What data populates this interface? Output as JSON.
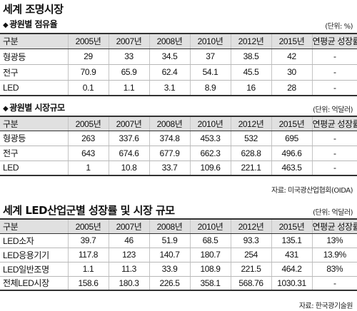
{
  "section1": {
    "title": "세계 조명시장",
    "table1": {
      "subtitle": "광원별 점유율",
      "unit": "(단위: %)",
      "headers": [
        "구분",
        "2005년",
        "2007년",
        "2008년",
        "2010년",
        "2012년",
        "2015년",
        "연평균 성장률"
      ],
      "rows": [
        [
          "형광등",
          "29",
          "33",
          "34.5",
          "37",
          "38.5",
          "42",
          "-"
        ],
        [
          "전구",
          "70.9",
          "65.9",
          "62.4",
          "54.1",
          "45.5",
          "30",
          "-"
        ],
        [
          "LED",
          "0.1",
          "1.1",
          "3.1",
          "8.9",
          "16",
          "28",
          "-"
        ]
      ]
    },
    "table2": {
      "subtitle": "광원별 시장규모",
      "unit": "(단위: 억달러)",
      "headers": [
        "구분",
        "2005년",
        "2007년",
        "2008년",
        "2010년",
        "2012년",
        "2015년",
        "연평균 성장률"
      ],
      "rows": [
        [
          "형광등",
          "263",
          "337.6",
          "374.8",
          "453.3",
          "532",
          "695",
          "-"
        ],
        [
          "전구",
          "643",
          "674.6",
          "677.9",
          "662.3",
          "628.8",
          "496.6",
          "-"
        ],
        [
          "LED",
          "1",
          "10.8",
          "33.7",
          "109.6",
          "221.1",
          "463.5",
          "-"
        ]
      ]
    },
    "source": "자료: 미국광산업협회(OIDA)"
  },
  "section2": {
    "title": "세계 LED산업군별 성장률 및 시장 규모",
    "unit": "(단위: 억달러)",
    "headers": [
      "구분",
      "2005년",
      "2007년",
      "2008년",
      "2010년",
      "2012년",
      "2015년",
      "연평균 성장률"
    ],
    "rows": [
      [
        "LED소자",
        "39.7",
        "46",
        "51.9",
        "68.5",
        "93.3",
        "135.1",
        "13%"
      ],
      [
        "LED응용기기",
        "117.8",
        "123",
        "140.7",
        "180.7",
        "254",
        "431",
        "13.9%"
      ],
      [
        "LED일반조명",
        "1.1",
        "11.3",
        "33.9",
        "108.9",
        "221.5",
        "464.2",
        "83%"
      ],
      [
        "전체LED시장",
        "158.6",
        "180.3",
        "226.5",
        "358.1",
        "568.76",
        "1030.31",
        "-"
      ]
    ],
    "source": "자료: 한국광기술원"
  }
}
